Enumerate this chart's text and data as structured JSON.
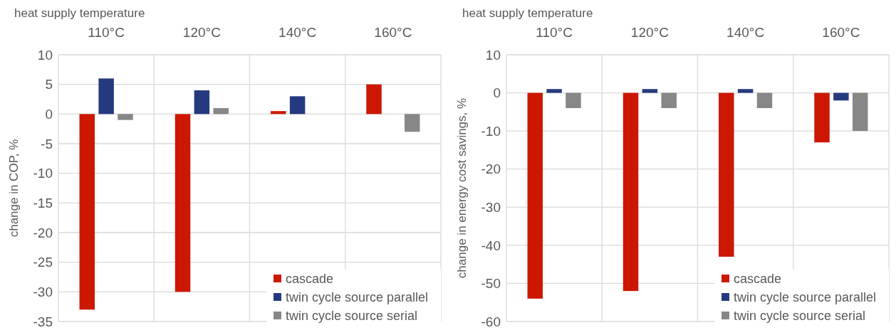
{
  "chart_data": [
    {
      "type": "bar",
      "xlabel": "heat supply temperature",
      "ylabel": "change in COP, %",
      "categories": [
        "110°C",
        "120°C",
        "140°C",
        "160°C"
      ],
      "series": [
        {
          "name": "cascade",
          "color": "#cc1800",
          "values": [
            -33,
            -30,
            0.5,
            5
          ]
        },
        {
          "name": "twin cycle source parallel",
          "color": "#253a7e",
          "values": [
            6,
            4,
            3,
            null
          ]
        },
        {
          "name": "twin cycle source serial",
          "color": "#878787",
          "values": [
            -1,
            1,
            null,
            -3
          ]
        }
      ],
      "ylim": [
        -35,
        10
      ],
      "yticks": [
        -35,
        -30,
        -25,
        -20,
        -15,
        -10,
        -5,
        0,
        5,
        10
      ],
      "grid": true,
      "legend": "bottom right"
    },
    {
      "type": "bar",
      "xlabel": "heat supply temperature",
      "ylabel": "change in energy cost savings, %",
      "categories": [
        "110°C",
        "120°C",
        "140°C",
        "160°C"
      ],
      "series": [
        {
          "name": "cascade",
          "color": "#cc1800",
          "values": [
            -54,
            -52,
            -43,
            -13
          ]
        },
        {
          "name": "twin cycle source parallel",
          "color": "#253a7e",
          "values": [
            1,
            1,
            1,
            -2
          ]
        },
        {
          "name": "twin cycle source serial",
          "color": "#878787",
          "values": [
            -4,
            -4,
            -4,
            -10
          ]
        }
      ],
      "ylim": [
        -60,
        10
      ],
      "yticks": [
        -60,
        -50,
        -40,
        -30,
        -20,
        -10,
        0,
        10
      ],
      "grid": true,
      "legend": "bottom right"
    }
  ]
}
